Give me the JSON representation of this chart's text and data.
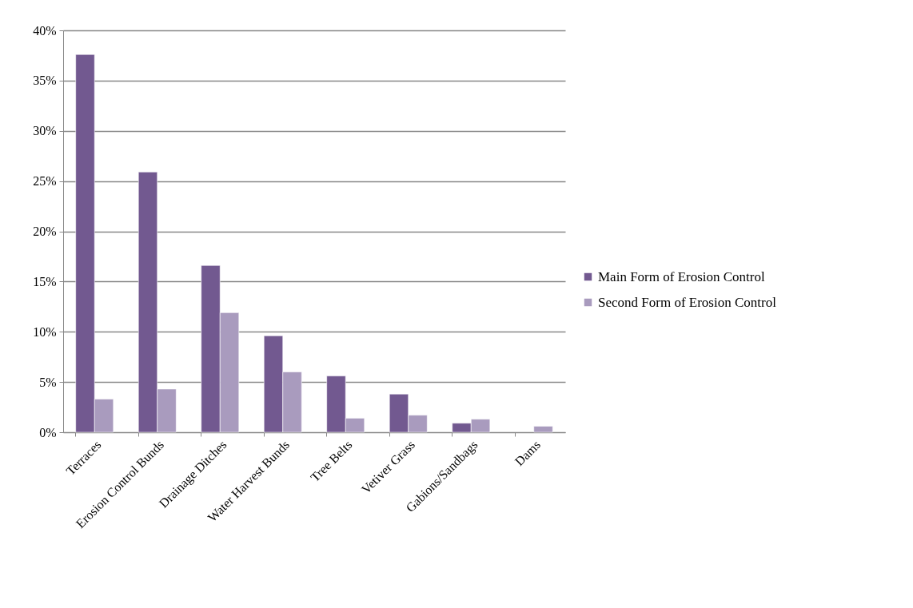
{
  "chart_data": {
    "type": "bar",
    "categories": [
      "Terraces",
      "Erosion Control Bunds",
      "Drainage Ditches",
      "Water Harvest Bunds",
      "Tree Belts",
      "Vetiver Grass",
      "Gabions/Sandbags",
      "Dams"
    ],
    "series": [
      {
        "name": "Main Form of Erosion Control",
        "color": "#725990",
        "values": [
          37.6,
          25.9,
          16.6,
          9.6,
          5.6,
          3.8,
          0.9,
          null
        ]
      },
      {
        "name": "Second Form of Erosion Control",
        "color": "#a99bbe",
        "values": [
          3.3,
          4.3,
          11.9,
          6.0,
          1.4,
          1.7,
          1.3,
          0.6
        ]
      }
    ],
    "ylim": [
      0,
      40
    ],
    "yticks": [
      {
        "value": 0,
        "label": "0%"
      },
      {
        "value": 5,
        "label": "5%"
      },
      {
        "value": 10,
        "label": "10%"
      },
      {
        "value": 15,
        "label": "15%"
      },
      {
        "value": 20,
        "label": "20%"
      },
      {
        "value": 25,
        "label": "25%"
      },
      {
        "value": 30,
        "label": "30%"
      },
      {
        "value": 35,
        "label": "35%"
      },
      {
        "value": 40,
        "label": "40%"
      }
    ],
    "grid": "y",
    "legend": "right"
  }
}
